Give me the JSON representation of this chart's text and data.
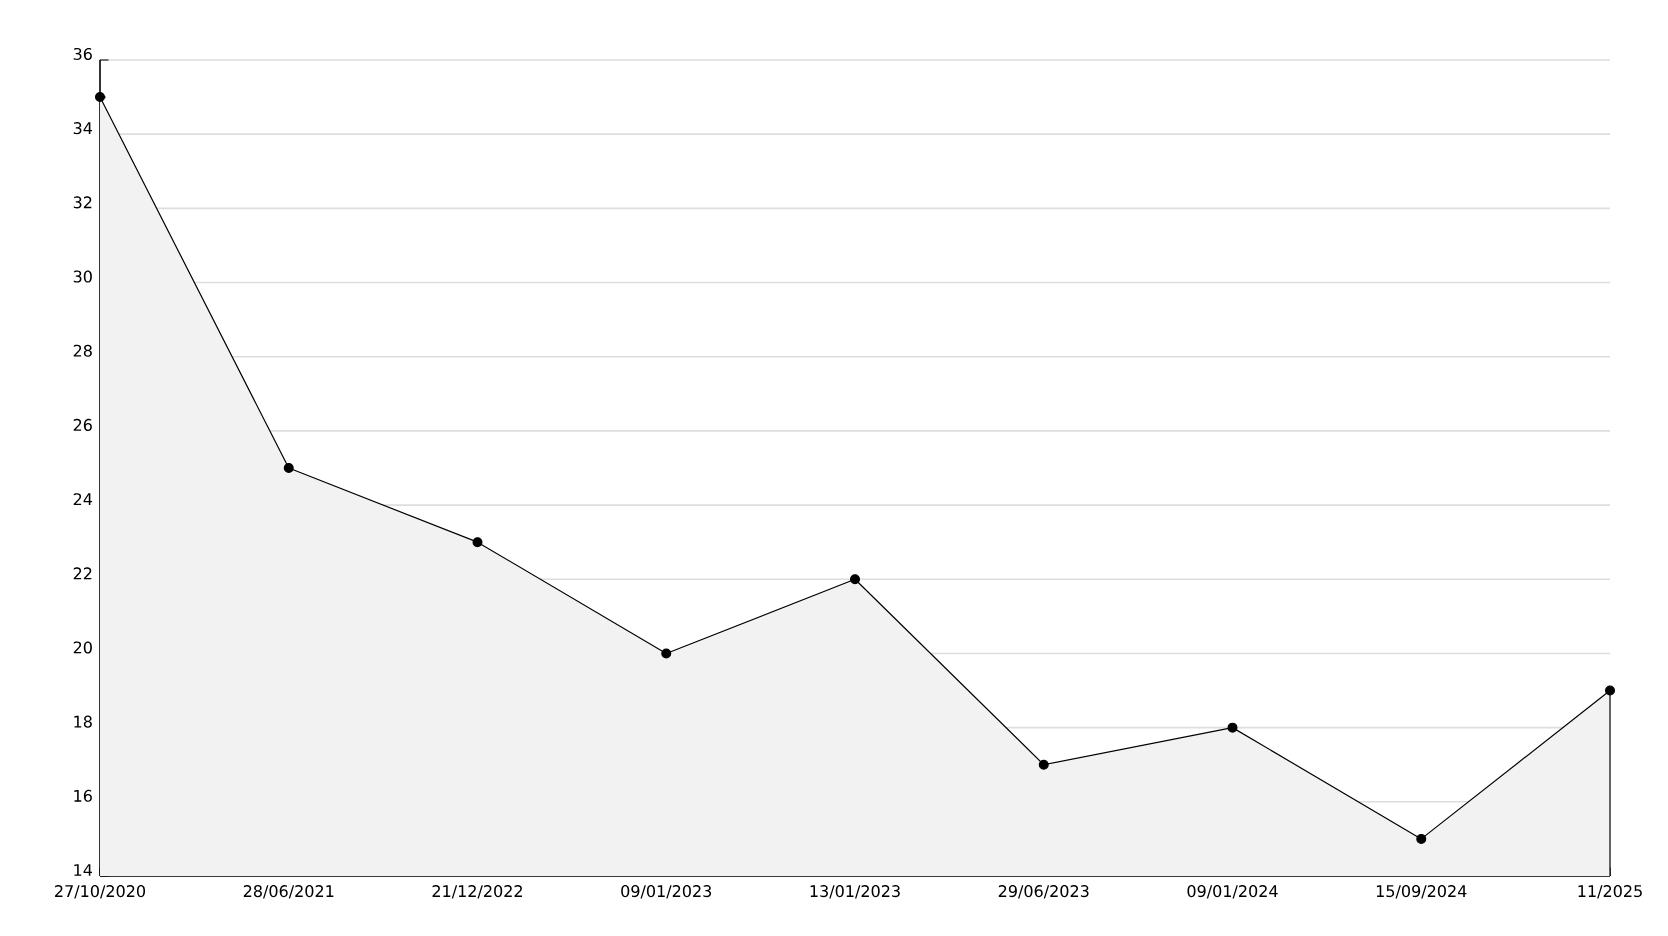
{
  "chart_data": {
    "type": "area",
    "categories": [
      "27/10/2020",
      "28/06/2021",
      "21/12/2022",
      "09/01/2023",
      "13/01/2023",
      "29/06/2023",
      "09/01/2024",
      "15/09/2024",
      "11/2025"
    ],
    "series": [
      {
        "color": "#000000",
        "values": [
          35,
          25,
          23,
          20,
          22,
          17,
          18,
          15,
          19
        ]
      }
    ],
    "ylim": [
      14,
      36
    ],
    "yticks": [
      14,
      16,
      18,
      20,
      22,
      24,
      26,
      28,
      30,
      32,
      34,
      36
    ],
    "grid": "y",
    "marker": "circle",
    "line_style": "solid"
  }
}
